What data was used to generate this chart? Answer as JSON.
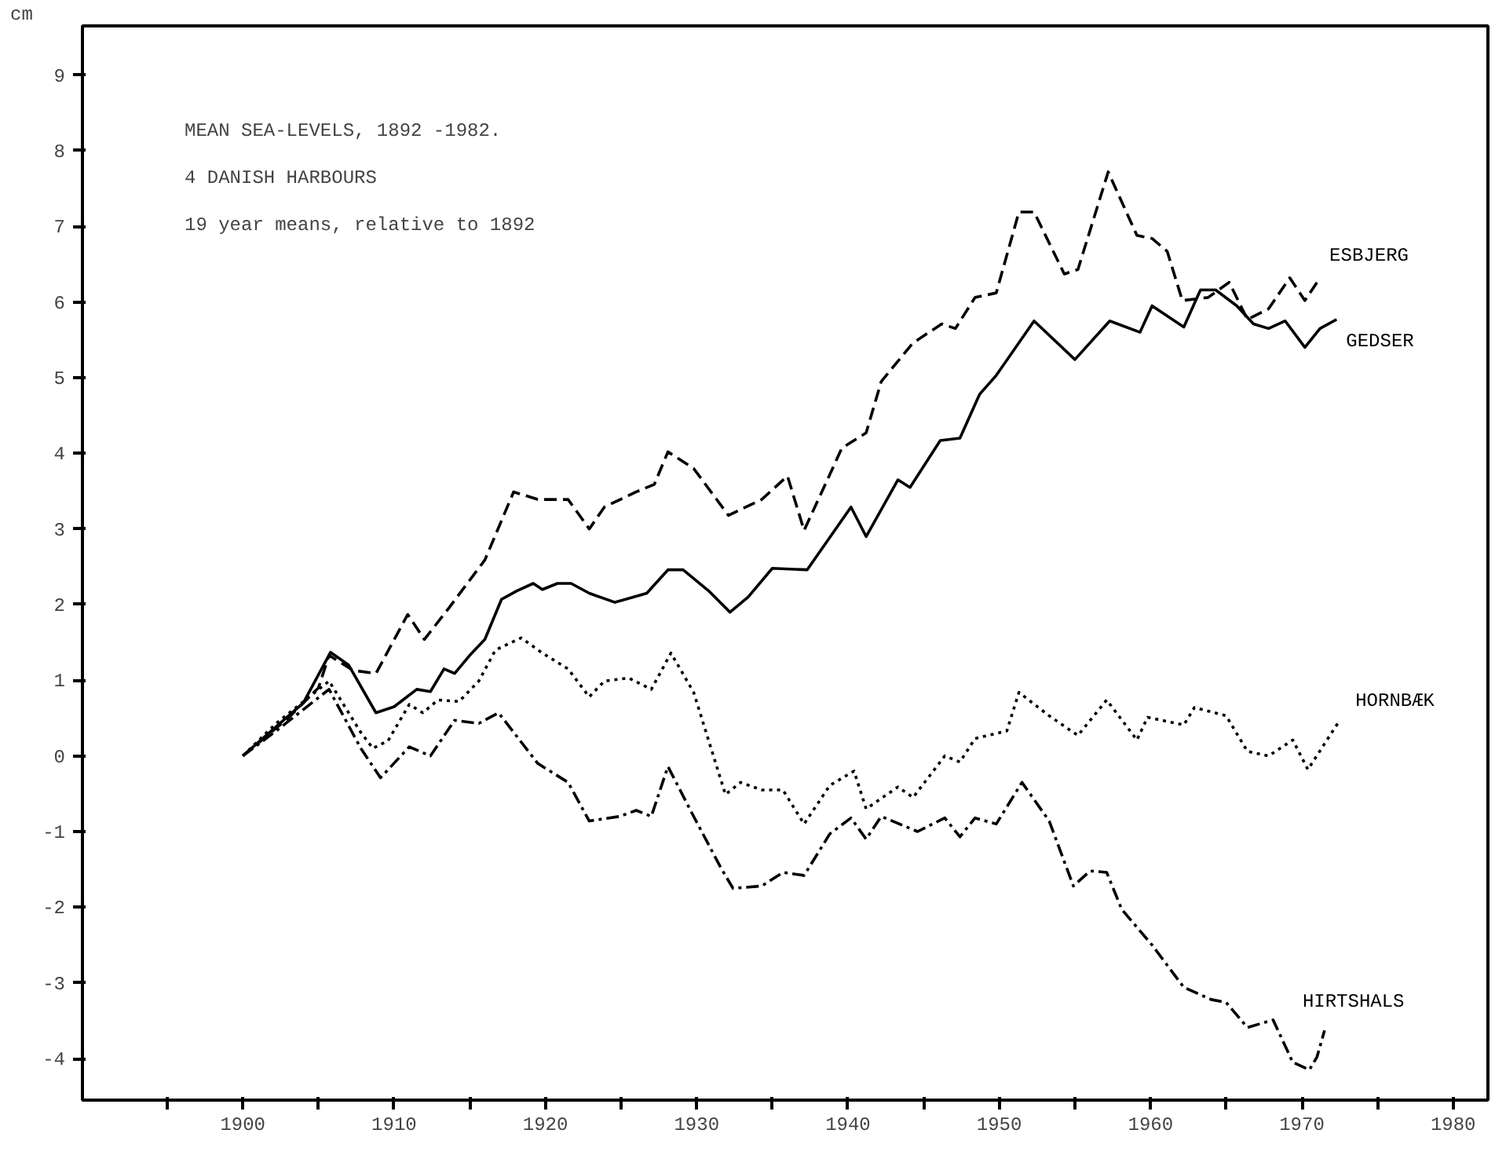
{
  "chart_data": {
    "type": "line",
    "title": "MEAN SEA-LEVELS, 1892 -1982.",
    "subtitle": "4 DANISH HARBOURS",
    "annotations": [
      "19 year means, relative to 1892"
    ],
    "ylabel": "cm",
    "xlim": [
      1889.4,
      1982.3
    ],
    "ylim": [
      -4.55,
      9.65
    ],
    "xticks": [
      {
        "value": 1895,
        "label": null
      },
      1900,
      {
        "value": 1905,
        "label": null
      },
      1910,
      {
        "value": 1915,
        "label": null
      },
      1920,
      {
        "value": 1925,
        "label": null
      },
      1930,
      {
        "value": 1935,
        "label": null
      },
      1940,
      {
        "value": 1945,
        "label": null
      },
      1950,
      {
        "value": 1955,
        "label": null
      },
      1960,
      {
        "value": 1965,
        "label": null
      },
      1970,
      {
        "value": 1975,
        "label": null
      },
      1980
    ],
    "yticks": [
      -4,
      -3,
      -2,
      -1,
      0,
      1,
      2,
      3,
      4,
      5,
      6,
      7,
      8,
      9
    ],
    "grid": false,
    "marker": "none",
    "series": [
      {
        "name": "ESBJERG",
        "color": "#000000",
        "line_style": "dashed",
        "x": [
          1900,
          1903,
          1905,
          1905.7,
          1907.3,
          1908.8,
          1910.9,
          1912.0,
          1913.6,
          1916.0,
          1917.9,
          1919.5,
          1921.5,
          1922.9,
          1923.9,
          1926.0,
          1927.2,
          1928.1,
          1929.8,
          1932.1,
          1934.3,
          1936.0,
          1937.1,
          1939.6,
          1941.2,
          1942.2,
          1944.3,
          1946.2,
          1947.1,
          1948.4,
          1949.8,
          1951.3,
          1952.3,
          1954.3,
          1955.2,
          1957.2,
          1959.1,
          1960.1,
          1961.1,
          1962.1,
          1963.8,
          1965.2,
          1966.4,
          1967.8,
          1969.2,
          1970.2,
          1971.2
        ],
        "values": [
          0,
          0.5,
          0.9,
          1.33,
          1.13,
          1.09,
          1.87,
          1.54,
          1.95,
          2.59,
          3.49,
          3.39,
          3.39,
          3.0,
          3.29,
          3.49,
          3.59,
          4.02,
          3.8,
          3.18,
          3.39,
          3.7,
          2.98,
          4.07,
          4.27,
          4.95,
          5.46,
          5.71,
          5.65,
          6.06,
          6.12,
          7.19,
          7.19,
          6.37,
          6.43,
          7.72,
          6.88,
          6.84,
          6.67,
          6.02,
          6.06,
          6.26,
          5.77,
          5.91,
          6.32,
          6.02,
          6.32
        ]
      },
      {
        "name": "GEDSER",
        "color": "#000000",
        "line_style": "solid",
        "x": [
          1900,
          1902,
          1904,
          1905.8,
          1907,
          1908.8,
          1910,
          1911.5,
          1912.4,
          1913.3,
          1914.0,
          1915.0,
          1916.0,
          1917.1,
          1918.1,
          1919.2,
          1919.8,
          1920.8,
          1921.7,
          1922.9,
          1924.6,
          1926.7,
          1928.1,
          1929.1,
          1930.8,
          1932.2,
          1933.4,
          1935.0,
          1937.3,
          1940.2,
          1941.2,
          1943.3,
          1944.1,
          1946.1,
          1947.4,
          1948.7,
          1949.8,
          1952.3,
          1955.0,
          1957.3,
          1959.3,
          1960.1,
          1962.2,
          1963.3,
          1964.3,
          1965.7,
          1966.8,
          1967.8,
          1968.9,
          1970.2,
          1971.2,
          1972.3
        ],
        "values": [
          0,
          0.35,
          0.7,
          1.37,
          1.2,
          0.57,
          0.65,
          0.88,
          0.85,
          1.15,
          1.09,
          1.33,
          1.54,
          2.07,
          2.18,
          2.28,
          2.2,
          2.28,
          2.28,
          2.15,
          2.03,
          2.15,
          2.46,
          2.46,
          2.18,
          1.9,
          2.1,
          2.48,
          2.46,
          3.29,
          2.9,
          3.65,
          3.55,
          4.17,
          4.2,
          4.78,
          5.03,
          5.75,
          5.24,
          5.75,
          5.6,
          5.95,
          5.67,
          6.16,
          6.16,
          5.95,
          5.71,
          5.65,
          5.75,
          5.4,
          5.65,
          5.77
        ]
      },
      {
        "name": "HORNBÆK",
        "color": "#000000",
        "line_style": "dotted",
        "x": [
          1900,
          1902.2,
          1905.7,
          1907.8,
          1908.6,
          1909.6,
          1911.0,
          1911.9,
          1912.9,
          1914.3,
          1915.6,
          1916.7,
          1918.4,
          1919.8,
          1921.5,
          1922.9,
          1923.9,
          1925.5,
          1927.0,
          1928.3,
          1929.8,
          1931.9,
          1932.9,
          1934.3,
          1935.7,
          1937.1,
          1938.8,
          1940.4,
          1941.2,
          1943.3,
          1944.3,
          1946.4,
          1947.4,
          1948.4,
          1950.5,
          1951.3,
          1953.3,
          1955.2,
          1957.1,
          1959.1,
          1959.8,
          1962.2,
          1962.9,
          1965.0,
          1966.4,
          1967.8,
          1969.4,
          1970.4,
          1972.5
        ],
        "values": [
          0,
          0.43,
          0.99,
          0.31,
          0.1,
          0.2,
          0.68,
          0.57,
          0.74,
          0.72,
          0.99,
          1.4,
          1.56,
          1.36,
          1.15,
          0.78,
          0.99,
          1.03,
          0.88,
          1.36,
          0.84,
          -0.51,
          -0.35,
          -0.45,
          -0.45,
          -0.9,
          -0.39,
          -0.2,
          -0.7,
          -0.41,
          -0.55,
          0.0,
          -0.08,
          0.23,
          0.33,
          0.84,
          0.53,
          0.27,
          0.74,
          0.21,
          0.51,
          0.41,
          0.64,
          0.53,
          0.06,
          0.0,
          0.21,
          -0.18,
          0.47
        ]
      },
      {
        "name": "HIRTSHALS",
        "color": "#000000",
        "line_style": "dashdot",
        "x": [
          1900,
          1902.2,
          1905.7,
          1907.8,
          1909.1,
          1911.0,
          1912.4,
          1914.0,
          1915.6,
          1916.9,
          1919.5,
          1921.5,
          1922.9,
          1924.9,
          1926.0,
          1927.0,
          1928.1,
          1929.8,
          1931.6,
          1932.4,
          1934.3,
          1935.7,
          1937.1,
          1938.8,
          1940.2,
          1941.2,
          1942.2,
          1944.6,
          1946.4,
          1947.4,
          1948.4,
          1949.8,
          1951.5,
          1953.3,
          1954.9,
          1956.0,
          1957.1,
          1958.1,
          1960.1,
          1962.2,
          1964.0,
          1965.0,
          1966.4,
          1968.1,
          1969.4,
          1970.5,
          1971.0,
          1971.5
        ],
        "values": [
          0,
          0.33,
          0.88,
          0.1,
          -0.29,
          0.12,
          0.0,
          0.47,
          0.43,
          0.57,
          -0.1,
          -0.35,
          -0.86,
          -0.8,
          -0.72,
          -0.8,
          -0.14,
          -0.8,
          -1.48,
          -1.75,
          -1.72,
          -1.54,
          -1.58,
          -1.03,
          -0.82,
          -1.1,
          -0.8,
          -1.0,
          -0.82,
          -1.07,
          -0.82,
          -0.9,
          -0.35,
          -0.86,
          -1.72,
          -1.52,
          -1.54,
          -2.03,
          -2.5,
          -3.06,
          -3.22,
          -3.26,
          -3.59,
          -3.49,
          -4.05,
          -4.15,
          -3.98,
          -3.63
        ]
      }
    ]
  }
}
